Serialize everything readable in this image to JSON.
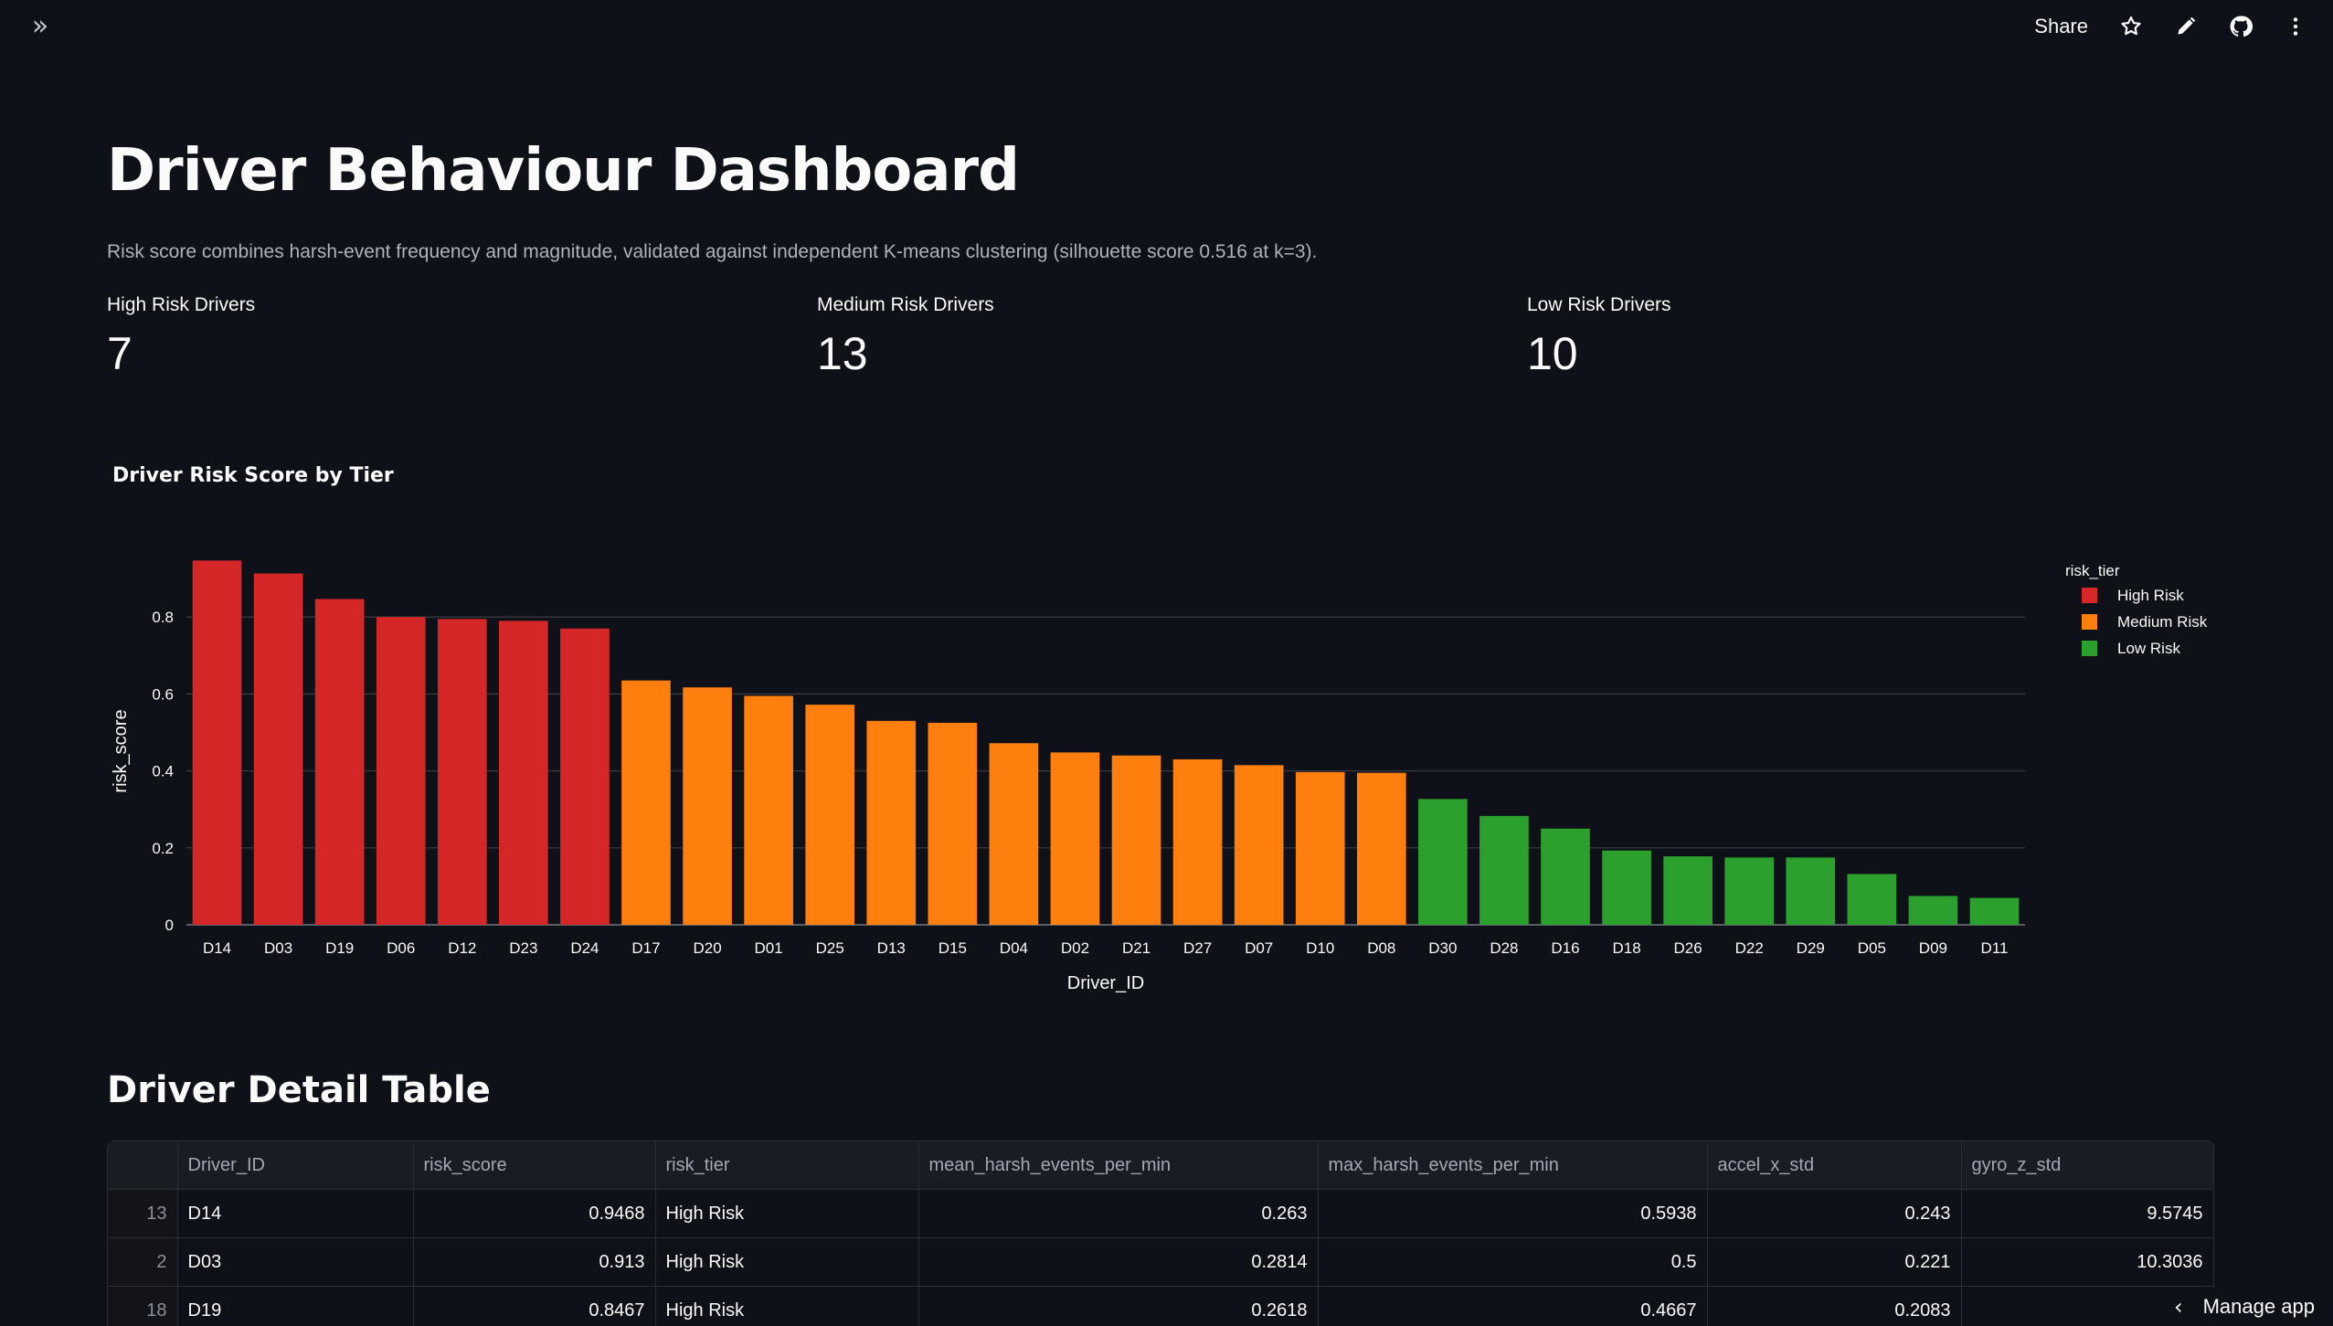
{
  "toolbar": {
    "share_label": "Share",
    "expand_icon": "double-chevron-right-icon",
    "icons": [
      "star-icon",
      "pencil-icon",
      "github-icon",
      "more-vertical-icon"
    ]
  },
  "page": {
    "title": "Driver Behaviour Dashboard",
    "subtitle": "Risk score combines harsh-event frequency and magnitude, validated against independent K-means clustering (silhouette score 0.516 at k=3)."
  },
  "metrics": [
    {
      "label": "High Risk Drivers",
      "value": "7"
    },
    {
      "label": "Medium Risk Drivers",
      "value": "13"
    },
    {
      "label": "Low Risk Drivers",
      "value": "10"
    }
  ],
  "chart_data": {
    "type": "bar",
    "title": "Driver Risk Score by Tier",
    "xlabel": "Driver_ID",
    "ylabel": "risk_score",
    "ylim": [
      0,
      0.95
    ],
    "yticks": [
      0,
      0.2,
      0.4,
      0.6,
      0.8
    ],
    "grid": true,
    "legend_title": "risk_tier",
    "legend_position": "top-right",
    "legend": [
      {
        "name": "High Risk",
        "color": "#d62728"
      },
      {
        "name": "Medium Risk",
        "color": "#ff7f0e"
      },
      {
        "name": "Low Risk",
        "color": "#2ca02c"
      }
    ],
    "categories": [
      "D14",
      "D03",
      "D19",
      "D06",
      "D12",
      "D23",
      "D24",
      "D17",
      "D20",
      "D01",
      "D25",
      "D13",
      "D15",
      "D04",
      "D02",
      "D21",
      "D27",
      "D07",
      "D10",
      "D08",
      "D30",
      "D28",
      "D16",
      "D18",
      "D26",
      "D22",
      "D29",
      "D05",
      "D09",
      "D11"
    ],
    "values": [
      0.9468,
      0.913,
      0.8467,
      0.8,
      0.795,
      0.79,
      0.77,
      0.635,
      0.617,
      0.595,
      0.572,
      0.53,
      0.525,
      0.472,
      0.448,
      0.44,
      0.43,
      0.415,
      0.397,
      0.395,
      0.327,
      0.283,
      0.25,
      0.193,
      0.178,
      0.175,
      0.175,
      0.132,
      0.075,
      0.07
    ],
    "tiers": [
      "High Risk",
      "High Risk",
      "High Risk",
      "High Risk",
      "High Risk",
      "High Risk",
      "High Risk",
      "Medium Risk",
      "Medium Risk",
      "Medium Risk",
      "Medium Risk",
      "Medium Risk",
      "Medium Risk",
      "Medium Risk",
      "Medium Risk",
      "Medium Risk",
      "Medium Risk",
      "Medium Risk",
      "Medium Risk",
      "Medium Risk",
      "Low Risk",
      "Low Risk",
      "Low Risk",
      "Low Risk",
      "Low Risk",
      "Low Risk",
      "Low Risk",
      "Low Risk",
      "Low Risk",
      "Low Risk"
    ]
  },
  "table": {
    "title": "Driver Detail Table",
    "columns": [
      "",
      "Driver_ID",
      "risk_score",
      "risk_tier",
      "mean_harsh_events_per_min",
      "max_harsh_events_per_min",
      "accel_x_std",
      "gyro_z_std"
    ],
    "rows": [
      [
        "13",
        "D14",
        "0.9468",
        "High Risk",
        "0.263",
        "0.5938",
        "0.243",
        "9.5745"
      ],
      [
        "2",
        "D03",
        "0.913",
        "High Risk",
        "0.2814",
        "0.5",
        "0.221",
        "10.3036"
      ],
      [
        "18",
        "D19",
        "0.8467",
        "High Risk",
        "0.2618",
        "0.4667",
        "0.2083",
        ""
      ]
    ]
  },
  "footer": {
    "manage_label": "Manage app"
  }
}
